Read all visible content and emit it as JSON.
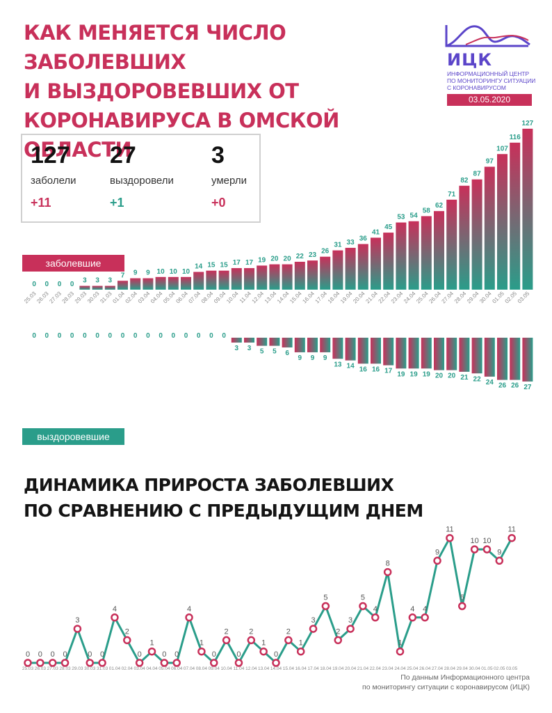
{
  "header": {
    "title": "КАК МЕНЯЕТСЯ ЧИСЛО ЗАБОЛЕВШИХ\nИ ВЫЗДОРОВЕВШИХ ОТ\nКОРОНАВИРУСА В ОМСКОЙ ОБЛАСТИ",
    "logo_name": "ИЦК",
    "logo_sub": "информационный центр\nпо мониторингу ситуации\nс коронавирусом",
    "date": "03.05.2020"
  },
  "stats": [
    {
      "value": "127",
      "label": "заболели",
      "delta": "+11"
    },
    {
      "value": "27",
      "label": "выздоровели",
      "delta": "+1"
    },
    {
      "value": "3",
      "label": "умерли",
      "delta": "+0"
    }
  ],
  "tags": {
    "sick": "заболевшие",
    "recovered": "выздоровевшие"
  },
  "section2_title": "ДИНАМИКА ПРИРОСТА ЗАБОЛЕВШИХ\nПО СРАВНЕНИЮ С ПРЕДЫДУЩИМ ДНЕМ",
  "source": "По данным Информационного центра\nпо мониторингу ситуации с коронавирусом (ИЦК)",
  "colors": {
    "accent": "#c8305a",
    "teal": "#2a9d8a",
    "brand": "#5b45c9"
  },
  "chart_data": [
    {
      "type": "bar",
      "categories": [
        "25.03",
        "26.03",
        "27.03",
        "28.03",
        "29.03",
        "30.03",
        "31.03",
        "01.04",
        "02.04",
        "03.04",
        "04.04",
        "05.04",
        "06.04",
        "07.04",
        "08.04",
        "09.04",
        "10.04",
        "11.04",
        "12.04",
        "13.04",
        "14.04",
        "15.04",
        "16.04",
        "17.04",
        "18.04",
        "19.04",
        "20.04",
        "21.04",
        "22.04",
        "23.04",
        "24.04",
        "25.04",
        "26.04",
        "27.04",
        "28.04",
        "29.04",
        "30.04",
        "01.05",
        "02.05",
        "03.05"
      ],
      "series": [
        {
          "name": "заболевшие",
          "values": [
            0,
            0,
            0,
            0,
            3,
            3,
            3,
            7,
            9,
            9,
            10,
            10,
            10,
            14,
            15,
            15,
            17,
            17,
            19,
            20,
            20,
            22,
            23,
            26,
            31,
            33,
            36,
            41,
            45,
            53,
            54,
            58,
            62,
            71,
            82,
            87,
            97,
            107,
            116,
            127
          ]
        },
        {
          "name": "выздоровевшие",
          "values": [
            0,
            0,
            0,
            0,
            0,
            0,
            0,
            0,
            0,
            0,
            0,
            0,
            0,
            0,
            0,
            0,
            3,
            3,
            5,
            5,
            6,
            9,
            9,
            9,
            13,
            14,
            16,
            16,
            17,
            19,
            19,
            19,
            20,
            20,
            21,
            22,
            24,
            26,
            26,
            27
          ]
        }
      ]
    },
    {
      "type": "line",
      "x": [
        "25.03",
        "26.03",
        "27.03",
        "28.03",
        "29.03",
        "30.03",
        "31.03",
        "01.04",
        "02.04",
        "03.04",
        "04.04",
        "05.04",
        "06.04",
        "07.04",
        "08.04",
        "09.04",
        "10.04",
        "11.04",
        "12.04",
        "13.04",
        "14.04",
        "15.04",
        "16.04",
        "17.04",
        "18.04",
        "19.04",
        "20.04",
        "21.04",
        "22.04",
        "23.04",
        "24.04",
        "25.04",
        "26.04",
        "27.04",
        "28.04",
        "29.04",
        "30.04",
        "01.05",
        "02.05",
        "03.05"
      ],
      "values": [
        0,
        0,
        0,
        0,
        3,
        0,
        0,
        4,
        2,
        0,
        1,
        0,
        0,
        4,
        1,
        0,
        2,
        0,
        2,
        1,
        0,
        2,
        1,
        3,
        5,
        2,
        3,
        5,
        4,
        8,
        1,
        4,
        4,
        9,
        11,
        5,
        10,
        10,
        9,
        11
      ]
    }
  ]
}
